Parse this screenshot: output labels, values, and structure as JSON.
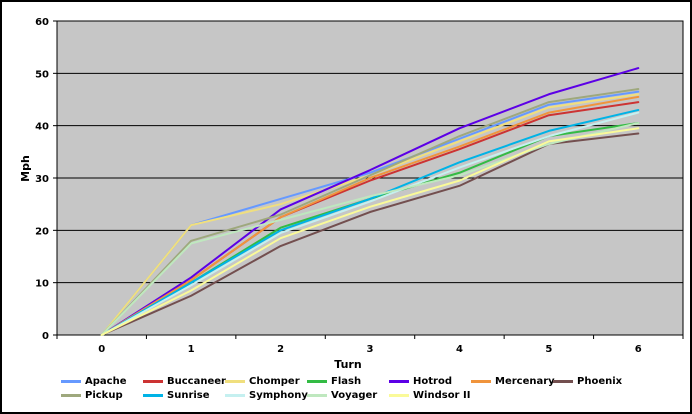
{
  "chart_data": {
    "type": "line",
    "title": "",
    "xlabel": "Turn",
    "ylabel": "Mph",
    "x": [
      0,
      1,
      2,
      3,
      4,
      5,
      6
    ],
    "xticklabels": [
      "0",
      "1",
      "2",
      "3",
      "4",
      "5",
      "6"
    ],
    "yticklabels": [
      "0",
      "10",
      "20",
      "30",
      "40",
      "50",
      "60"
    ],
    "ylim": [
      0,
      60
    ],
    "ytick_step": 10,
    "grid": true,
    "plot_bg_color": "#C6C6C6",
    "gridline_color": "#000000",
    "legend_position": "bottom",
    "series": [
      {
        "name": "Apache",
        "color": "#6699FF",
        "values": [
          0,
          21,
          26,
          31,
          37.5,
          44,
          46.5
        ]
      },
      {
        "name": "Buccaneer",
        "color": "#CC3333",
        "values": [
          0,
          10.5,
          22.5,
          29.5,
          35.5,
          42,
          44.5
        ]
      },
      {
        "name": "Chomper",
        "color": "#F0DF7E",
        "values": [
          0,
          21,
          25,
          30.5,
          37,
          43.5,
          46
        ]
      },
      {
        "name": "Flash",
        "color": "#33BB44",
        "values": [
          0,
          10,
          20.5,
          26,
          31,
          38,
          40.5
        ]
      },
      {
        "name": "Hotrod",
        "color": "#5C00E6",
        "values": [
          0,
          11,
          24,
          31.5,
          39.5,
          46,
          51
        ]
      },
      {
        "name": "Mercenary",
        "color": "#F0943C",
        "values": [
          0,
          10.5,
          22.5,
          30,
          36,
          42.5,
          45.5
        ]
      },
      {
        "name": "Phoenix",
        "color": "#734F4F",
        "values": [
          0,
          7.5,
          17,
          23.5,
          28.5,
          36.5,
          38.5
        ]
      },
      {
        "name": "Pickup",
        "color": "#9EA87D",
        "values": [
          0,
          18,
          23,
          30.5,
          38,
          44.5,
          47
        ]
      },
      {
        "name": "Sunrise",
        "color": "#00B3E6",
        "values": [
          0,
          10,
          20,
          26,
          33,
          39,
          43
        ]
      },
      {
        "name": "Symphony",
        "color": "#C5F0F0",
        "values": [
          0,
          9.5,
          19.5,
          25.5,
          32,
          38,
          42.5
        ]
      },
      {
        "name": "Voyager",
        "color": "#BFE8BF",
        "values": [
          0,
          17.5,
          22,
          26.5,
          30.5,
          36.5,
          40.5
        ]
      },
      {
        "name": "Windsor II",
        "color": "#FAFA99",
        "values": [
          0,
          8.5,
          18.5,
          24.5,
          29.5,
          37,
          39.5
        ]
      }
    ]
  }
}
